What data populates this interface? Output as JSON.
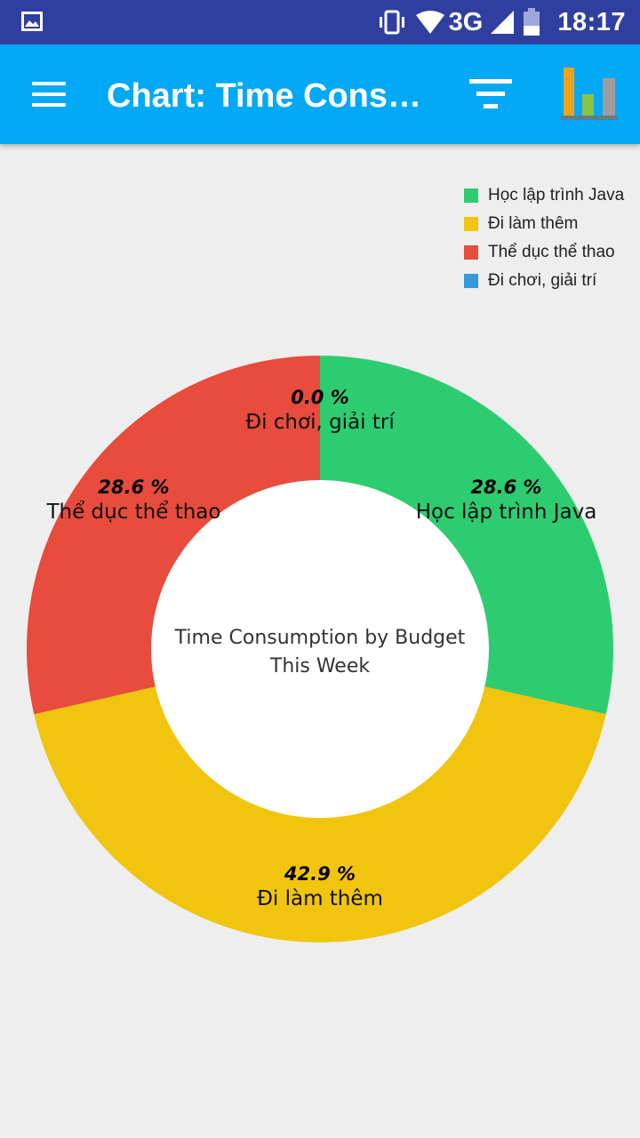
{
  "status_bar": {
    "network": "3G",
    "time": "18:17"
  },
  "app_bar": {
    "title": "Chart: Time Consu...",
    "menu_icon": "hamburger-menu-icon",
    "filter_icon": "filter-icon",
    "chart_icon": "bar-chart-icon"
  },
  "chart_data": {
    "type": "pie",
    "donut": true,
    "center_text": [
      "Time Consumption by Budget",
      "This Week"
    ],
    "legend_position": "top-right",
    "slices": [
      {
        "label": "Học lập trình Java",
        "value": 28.6,
        "value_label": "28.6 %",
        "color": "#2ecc71"
      },
      {
        "label": "Đi làm thêm",
        "value": 42.9,
        "value_label": "42.9 %",
        "color": "#f1c40f"
      },
      {
        "label": "Thể dục thể thao",
        "value": 28.6,
        "value_label": "28.6 %",
        "color": "#e74c3c"
      },
      {
        "label": "Đi chơi, giải trí",
        "value": 0.0,
        "value_label": "0.0 %",
        "color": "#3498db"
      }
    ]
  }
}
